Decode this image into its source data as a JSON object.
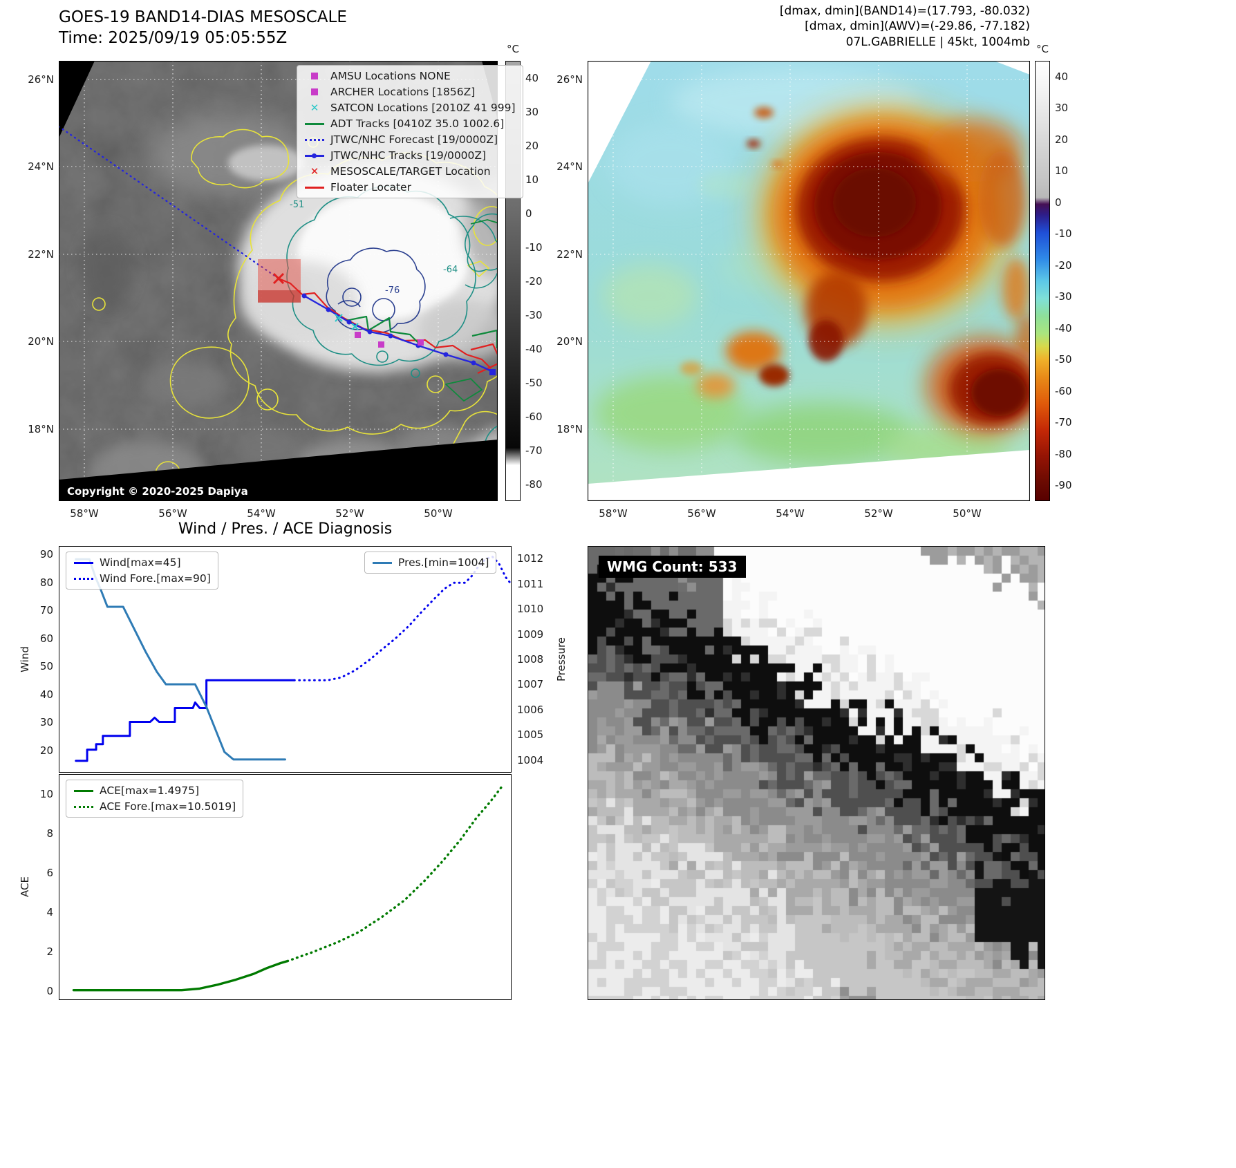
{
  "band14": {
    "title": "GOES-19 BAND14-DIAS MESOSCALE",
    "subtitle": "Time: 2025/09/19 05:05:55Z",
    "copyright": "Copyright © 2020-2025 Dapiya",
    "colorbar_unit": "°C",
    "colorbar_ticks": [
      40,
      30,
      20,
      10,
      0,
      -10,
      -20,
      -30,
      -40,
      -50,
      -60,
      -70,
      -80
    ],
    "lat_labels": [
      "26°N",
      "24°N",
      "22°N",
      "20°N",
      "18°N"
    ],
    "lon_labels": [
      "58°W",
      "56°W",
      "54°W",
      "52°W",
      "50°W"
    ],
    "contour_labels": [
      "-51",
      "-64",
      "-76"
    ],
    "legend": [
      {
        "label": "AMSU Locations NONE",
        "marker": "square",
        "color": "#c83cc8"
      },
      {
        "label": "ARCHER Locations [1856Z]",
        "marker": "square",
        "color": "#c83cc8"
      },
      {
        "label": "SATCON Locations [2010Z 41 999]",
        "marker": "x",
        "color": "#2ec8c8"
      },
      {
        "label": "ADT Tracks [0410Z 35.0 1002.6]",
        "marker": "line",
        "color": "#0f8a3c"
      },
      {
        "label": "JTWC/NHC Forecast [19/0000Z]",
        "marker": "dotted",
        "color": "#2525dd"
      },
      {
        "label": "JTWC/NHC Tracks [19/0000Z]",
        "marker": "line-dot",
        "color": "#2525dd"
      },
      {
        "label": "MESOSCALE/TARGET Location",
        "marker": "x",
        "color": "#e02020"
      },
      {
        "label": "Floater Locater",
        "marker": "line",
        "color": "#e02020"
      }
    ]
  },
  "awv": {
    "header_lines": [
      "[dmax, dmin](BAND14)=(17.793, -80.032)",
      "[dmax, dmin](AWV)=(-29.86, -77.182)",
      "07L.GABRIELLE | 45kt, 1004mb"
    ],
    "colorbar_unit": "°C",
    "colorbar_ticks": [
      40,
      30,
      20,
      10,
      0,
      -10,
      -20,
      -30,
      -40,
      -50,
      -60,
      -70,
      -80,
      -90
    ],
    "lat_labels": [
      "26°N",
      "24°N",
      "22°N",
      "20°N",
      "18°N"
    ],
    "lon_labels": [
      "58°W",
      "56°W",
      "54°W",
      "52°W",
      "50°W"
    ]
  },
  "wmg": {
    "label": "WMG Count: 533"
  },
  "chart_data": [
    {
      "type": "line",
      "title": "Wind / Pres. / ACE Diagnosis",
      "ylabel_left": "Wind",
      "ylabel_right": "Pressure",
      "xlim": [
        0,
        1
      ],
      "ylim_left": [
        12,
        93
      ],
      "ylim_right": [
        1003.5,
        1012.5
      ],
      "yticks_left": [
        20,
        30,
        40,
        50,
        60,
        70,
        80,
        90
      ],
      "yticks_right": [
        1004,
        1005,
        1006,
        1007,
        1008,
        1009,
        1010,
        1011,
        1012
      ],
      "grid": false,
      "legend_left_position": "upper left",
      "legend_right_position": "upper right",
      "series": [
        {
          "name": "Wind[max=45]",
          "axis": "left",
          "style": "solid",
          "color": "#0000ee",
          "width": 3,
          "points": [
            [
              0.035,
              16
            ],
            [
              0.06,
              16
            ],
            [
              0.06,
              20
            ],
            [
              0.08,
              20
            ],
            [
              0.08,
              22
            ],
            [
              0.095,
              22
            ],
            [
              0.095,
              25
            ],
            [
              0.155,
              25
            ],
            [
              0.155,
              30
            ],
            [
              0.2,
              30
            ],
            [
              0.21,
              31.5
            ],
            [
              0.22,
              30
            ],
            [
              0.255,
              30
            ],
            [
              0.255,
              35
            ],
            [
              0.295,
              35
            ],
            [
              0.3,
              37
            ],
            [
              0.31,
              35
            ],
            [
              0.325,
              35
            ],
            [
              0.325,
              45
            ],
            [
              0.52,
              45
            ]
          ]
        },
        {
          "name": "Wind Fore.[max=90]",
          "axis": "left",
          "style": "dotted",
          "color": "#0000ee",
          "width": 3,
          "points": [
            [
              0.52,
              45
            ],
            [
              0.595,
              45
            ],
            [
              0.625,
              46
            ],
            [
              0.655,
              48.5
            ],
            [
              0.685,
              52
            ],
            [
              0.715,
              56
            ],
            [
              0.745,
              60
            ],
            [
              0.775,
              64.5
            ],
            [
              0.8,
              69
            ],
            [
              0.83,
              74
            ],
            [
              0.855,
              78
            ],
            [
              0.875,
              80
            ],
            [
              0.9,
              80
            ],
            [
              0.915,
              82.5
            ],
            [
              0.93,
              86
            ],
            [
              0.945,
              88.5
            ],
            [
              0.96,
              89.5
            ],
            [
              0.975,
              87
            ],
            [
              0.99,
              82
            ],
            [
              1.0,
              80
            ]
          ]
        },
        {
          "name": "Pres.[min=1004]",
          "axis": "right",
          "style": "solid",
          "color": "#2e7bb5",
          "width": 3,
          "points": [
            [
              0.035,
              1012
            ],
            [
              0.065,
              1012
            ],
            [
              0.078,
              1011.3
            ],
            [
              0.09,
              1010.8
            ],
            [
              0.105,
              1010.1
            ],
            [
              0.14,
              1010.1
            ],
            [
              0.165,
              1009.2
            ],
            [
              0.19,
              1008.3
            ],
            [
              0.215,
              1007.5
            ],
            [
              0.235,
              1007
            ],
            [
              0.3,
              1007
            ],
            [
              0.325,
              1006.1
            ],
            [
              0.345,
              1005.2
            ],
            [
              0.365,
              1004.3
            ],
            [
              0.385,
              1004
            ],
            [
              0.5,
              1004
            ]
          ]
        }
      ]
    },
    {
      "type": "line",
      "ylabel": "ACE",
      "xlim": [
        0,
        1
      ],
      "ylim": [
        -0.45,
        11
      ],
      "yticks": [
        0,
        2,
        4,
        6,
        8,
        10
      ],
      "grid": false,
      "legend_position": "upper left",
      "series": [
        {
          "name": "ACE[max=1.4975]",
          "style": "solid",
          "color": "#007a00",
          "width": 3.4,
          "points": [
            [
              0.03,
              0.02
            ],
            [
              0.27,
              0.02
            ],
            [
              0.31,
              0.1
            ],
            [
              0.35,
              0.3
            ],
            [
              0.39,
              0.55
            ],
            [
              0.43,
              0.85
            ],
            [
              0.46,
              1.15
            ],
            [
              0.49,
              1.4
            ],
            [
              0.505,
              1.5
            ]
          ]
        },
        {
          "name": "ACE Fore.[max=10.5019]",
          "style": "dotted",
          "color": "#007a00",
          "width": 3.4,
          "points": [
            [
              0.505,
              1.5
            ],
            [
              0.56,
              1.95
            ],
            [
              0.615,
              2.45
            ],
            [
              0.665,
              3.0
            ],
            [
              0.715,
              3.75
            ],
            [
              0.765,
              4.6
            ],
            [
              0.81,
              5.6
            ],
            [
              0.85,
              6.6
            ],
            [
              0.89,
              7.7
            ],
            [
              0.925,
              8.8
            ],
            [
              0.955,
              9.6
            ],
            [
              0.985,
              10.5
            ]
          ]
        }
      ]
    }
  ]
}
